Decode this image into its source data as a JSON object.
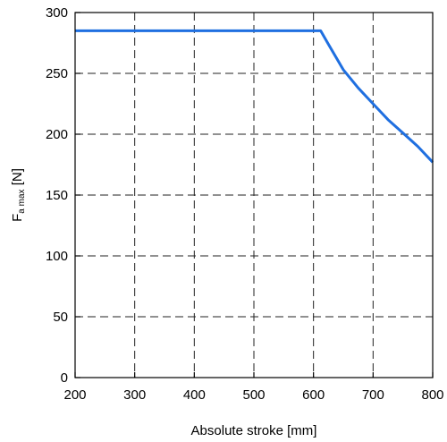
{
  "chart_data": {
    "type": "line",
    "xlabel": "Absolute stroke [mm]",
    "ylabel": {
      "main": "F",
      "subscript": "a max",
      "unit": " [N]"
    },
    "xlim": [
      200,
      800
    ],
    "ylim": [
      0,
      300
    ],
    "xticks": [
      200,
      300,
      400,
      500,
      600,
      700,
      800
    ],
    "yticks": [
      0,
      50,
      100,
      150,
      200,
      250,
      300
    ],
    "grid": true,
    "series": [
      {
        "color": "#1f6fe0",
        "x": [
          200,
          612,
          625,
          650,
          675,
          700,
          725,
          750,
          775,
          800
        ],
        "y": [
          285,
          285,
          274,
          253,
          238,
          225,
          212,
          201,
          190,
          177
        ]
      }
    ]
  }
}
